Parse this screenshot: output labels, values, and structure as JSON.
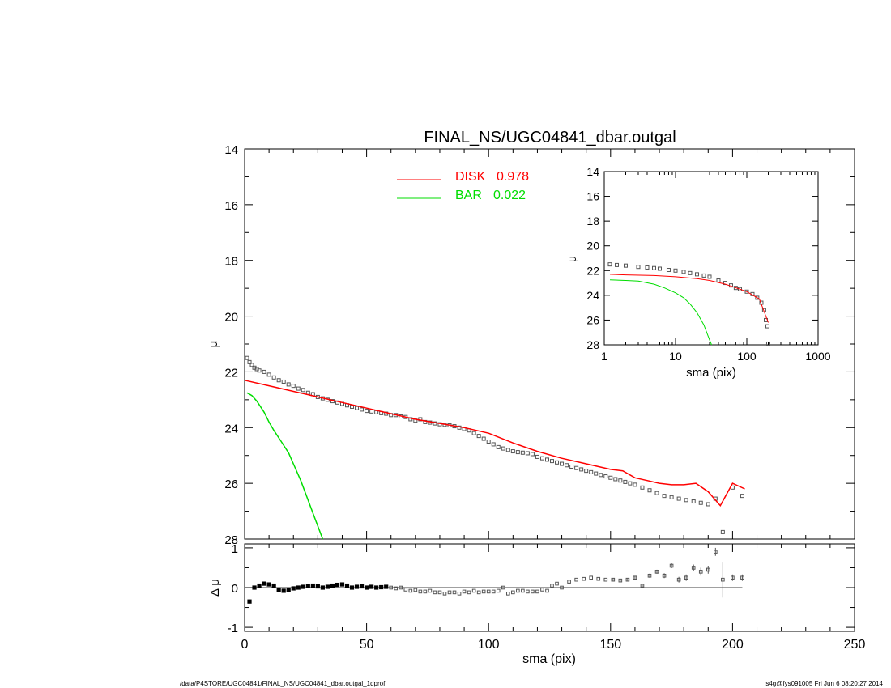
{
  "title": "FINAL_NS/UGC04841_dbar.outgal",
  "colors": {
    "disk": "#ff0000",
    "bar": "#00dd00",
    "data": "#000000"
  },
  "legend": [
    {
      "name": "DISK",
      "value": "0.978",
      "color": "#ff0000"
    },
    {
      "name": "BAR",
      "value": "0.022",
      "color": "#00dd00"
    }
  ],
  "footer": {
    "left": "/data/P4STORE/UGC04841/FINAL_NS/UGC04841_dbar.outgal_1dprof",
    "right": "s4g@fys091005  Fri Jun  6 08:20:27 2014"
  },
  "chart_data": [
    {
      "id": "main",
      "type": "scatter",
      "ylabel": "μ",
      "xlim": [
        0,
        250
      ],
      "ylim": [
        28,
        14
      ],
      "yticks": [
        "14",
        "16",
        "18",
        "20",
        "22",
        "24",
        "26",
        "28"
      ],
      "observed": {
        "x": [
          1,
          2,
          3,
          4,
          5,
          6,
          8,
          10,
          12,
          14,
          16,
          18,
          20,
          22,
          24,
          26,
          28,
          30,
          32,
          34,
          36,
          38,
          40,
          42,
          44,
          46,
          48,
          50,
          52,
          54,
          56,
          58,
          60,
          62,
          64,
          66,
          68,
          70,
          72,
          74,
          76,
          78,
          80,
          82,
          84,
          86,
          88,
          90,
          92,
          94,
          96,
          98,
          100,
          102,
          104,
          106,
          108,
          110,
          112,
          114,
          116,
          118,
          120,
          122,
          124,
          126,
          128,
          130,
          132,
          134,
          136,
          138,
          140,
          142,
          144,
          146,
          148,
          150,
          152,
          154,
          156,
          158,
          160,
          163,
          166,
          169,
          172,
          175,
          178,
          181,
          184,
          187,
          190,
          193,
          196,
          200,
          204
        ],
        "y": [
          21.5,
          21.65,
          21.75,
          21.85,
          21.9,
          21.95,
          22.0,
          22.1,
          22.2,
          22.3,
          22.35,
          22.45,
          22.5,
          22.6,
          22.65,
          22.75,
          22.8,
          22.9,
          22.95,
          23.0,
          23.05,
          23.1,
          23.15,
          23.2,
          23.25,
          23.3,
          23.35,
          23.4,
          23.42,
          23.45,
          23.48,
          23.5,
          23.55,
          23.55,
          23.6,
          23.62,
          23.7,
          23.75,
          23.7,
          23.8,
          23.82,
          23.85,
          23.88,
          23.9,
          23.92,
          23.95,
          24.0,
          24.05,
          24.1,
          24.2,
          24.3,
          24.4,
          24.5,
          24.6,
          24.7,
          24.75,
          24.8,
          24.85,
          24.88,
          24.9,
          24.92,
          24.95,
          25.05,
          25.1,
          25.15,
          25.2,
          25.25,
          25.3,
          25.35,
          25.4,
          25.45,
          25.5,
          25.55,
          25.6,
          25.65,
          25.7,
          25.75,
          25.8,
          25.85,
          25.9,
          25.95,
          26.0,
          26.05,
          26.15,
          26.25,
          26.35,
          26.45,
          26.5,
          26.55,
          26.6,
          26.65,
          26.7,
          26.75,
          26.55,
          27.75,
          26.15,
          26.45
        ]
      },
      "disk_model": {
        "x": [
          0,
          10,
          20,
          30,
          40,
          50,
          60,
          70,
          80,
          90,
          100,
          110,
          120,
          130,
          140,
          150,
          155,
          160,
          165,
          170,
          175,
          180,
          185,
          190,
          195,
          200,
          205
        ],
        "y": [
          22.3,
          22.5,
          22.7,
          22.9,
          23.1,
          23.3,
          23.5,
          23.7,
          23.85,
          24.0,
          24.2,
          24.55,
          24.85,
          25.1,
          25.3,
          25.5,
          25.55,
          25.8,
          25.9,
          26.0,
          26.05,
          26.05,
          26.0,
          26.3,
          26.8,
          26.0,
          26.2
        ]
      },
      "bar_model": {
        "x": [
          1,
          3,
          5,
          8,
          10,
          12,
          15,
          18,
          20,
          23,
          26,
          29,
          32
        ],
        "y": [
          22.75,
          22.85,
          23.05,
          23.45,
          23.8,
          24.1,
          24.5,
          24.9,
          25.3,
          25.9,
          26.6,
          27.3,
          28.0
        ]
      }
    },
    {
      "id": "residual",
      "type": "scatter",
      "xlabel": "sma (pix)",
      "ylabel": "Δ μ",
      "xlim": [
        0,
        250
      ],
      "ylim": [
        -1.1,
        1.1
      ],
      "xticks": [
        "0",
        "50",
        "100",
        "150",
        "200",
        "250"
      ],
      "yticks": [
        "1",
        "0",
        "-1"
      ],
      "x": [
        2,
        4,
        6,
        8,
        10,
        12,
        14,
        16,
        18,
        20,
        22,
        24,
        26,
        28,
        30,
        32,
        34,
        36,
        38,
        40,
        42,
        44,
        46,
        48,
        50,
        52,
        54,
        56,
        58,
        60,
        62,
        64,
        66,
        68,
        70,
        72,
        74,
        76,
        78,
        80,
        82,
        84,
        86,
        88,
        90,
        92,
        94,
        96,
        98,
        100,
        102,
        104,
        106,
        108,
        110,
        112,
        114,
        116,
        118,
        120,
        122,
        124,
        126,
        128,
        130,
        133,
        136,
        139,
        142,
        145,
        148,
        151,
        154,
        157,
        160,
        163,
        166,
        169,
        172,
        175,
        178,
        181,
        184,
        187,
        190,
        193,
        196,
        200,
        204
      ],
      "y": [
        -0.35,
        0.0,
        0.05,
        0.1,
        0.08,
        0.05,
        -0.05,
        -0.08,
        -0.05,
        -0.02,
        0.0,
        0.02,
        0.04,
        0.05,
        0.03,
        0.0,
        0.02,
        0.05,
        0.07,
        0.08,
        0.05,
        0.0,
        0.02,
        0.03,
        0.0,
        0.02,
        0.0,
        0.01,
        0.02,
        0.0,
        -0.02,
        0.0,
        -0.05,
        -0.08,
        -0.06,
        -0.1,
        -0.1,
        -0.08,
        -0.12,
        -0.12,
        -0.15,
        -0.12,
        -0.12,
        -0.15,
        -0.1,
        -0.12,
        -0.08,
        -0.12,
        -0.1,
        -0.1,
        -0.1,
        -0.08,
        0.0,
        -0.15,
        -0.12,
        -0.08,
        -0.08,
        -0.1,
        -0.1,
        -0.1,
        -0.05,
        -0.08,
        0.05,
        0.1,
        0.0,
        0.15,
        0.2,
        0.22,
        0.25,
        0.22,
        0.2,
        0.2,
        0.18,
        0.2,
        0.25,
        0.05,
        0.3,
        0.4,
        0.3,
        0.55,
        0.2,
        0.25,
        0.5,
        0.4,
        0.45,
        0.9,
        0.2,
        0.25,
        0.25
      ],
      "err": [
        0.05,
        0.02,
        0.02,
        0.02,
        0.02,
        0.02,
        0.02,
        0.02,
        0.02,
        0.02,
        0.02,
        0.02,
        0.02,
        0.02,
        0.02,
        0.02,
        0.02,
        0.02,
        0.02,
        0.02,
        0.02,
        0.02,
        0.02,
        0.02,
        0.02,
        0.02,
        0.02,
        0.02,
        0.02,
        0.02,
        0.02,
        0.02,
        0.02,
        0.02,
        0.02,
        0.02,
        0.02,
        0.02,
        0.02,
        0.02,
        0.02,
        0.02,
        0.02,
        0.02,
        0.02,
        0.02,
        0.02,
        0.02,
        0.02,
        0.02,
        0.02,
        0.02,
        0.02,
        0.02,
        0.02,
        0.02,
        0.02,
        0.02,
        0.02,
        0.02,
        0.02,
        0.02,
        0.02,
        0.02,
        0.02,
        0.03,
        0.03,
        0.03,
        0.03,
        0.03,
        0.03,
        0.04,
        0.04,
        0.04,
        0.04,
        0.05,
        0.05,
        0.05,
        0.06,
        0.06,
        0.07,
        0.08,
        0.08,
        0.1,
        0.1,
        0.1,
        0.45,
        0.08,
        0.08
      ]
    },
    {
      "id": "inset",
      "type": "scatter",
      "xlabel": "sma (pix)",
      "ylabel": "μ",
      "xscale": "log",
      "xlim": [
        1,
        1000
      ],
      "ylim": [
        28,
        14
      ],
      "xticks": [
        "1",
        "10",
        "100",
        "1000"
      ],
      "yticks": [
        "14",
        "16",
        "18",
        "20",
        "22",
        "24",
        "26",
        "28"
      ],
      "observed": {
        "x": [
          1.2,
          1.5,
          2,
          3,
          4,
          5,
          6,
          8,
          10,
          13,
          16,
          20,
          25,
          30,
          40,
          50,
          60,
          70,
          80,
          100,
          120,
          140,
          160,
          175,
          185,
          195,
          200
        ],
        "y": [
          21.5,
          21.55,
          21.6,
          21.7,
          21.75,
          21.8,
          21.85,
          21.95,
          22.0,
          22.1,
          22.2,
          22.3,
          22.4,
          22.5,
          22.8,
          23.0,
          23.2,
          23.4,
          23.5,
          23.7,
          23.9,
          24.2,
          24.6,
          25.2,
          26.0,
          26.5,
          27.9
        ]
      },
      "disk_model": {
        "x": [
          1.2,
          2,
          5,
          10,
          20,
          30,
          50,
          80,
          100,
          150,
          200
        ],
        "y": [
          22.3,
          22.35,
          22.4,
          22.5,
          22.65,
          22.8,
          23.1,
          23.5,
          23.7,
          24.3,
          26.2
        ]
      },
      "bar_model": {
        "x": [
          1.2,
          2,
          3,
          5,
          7,
          10,
          13,
          16,
          20,
          25,
          30,
          32
        ],
        "y": [
          22.75,
          22.8,
          22.85,
          23.1,
          23.4,
          23.8,
          24.2,
          24.7,
          25.4,
          26.4,
          27.6,
          28.0
        ]
      }
    }
  ]
}
